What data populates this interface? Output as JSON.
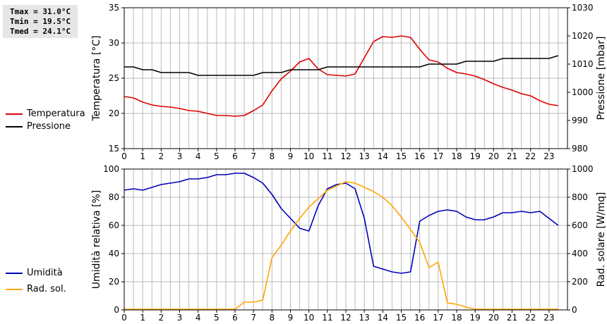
{
  "stats": {
    "tmax": "Tmax = 31.0°C",
    "tmin": "Tmin = 19.5°C",
    "tmed": "Tmed = 24.1°C"
  },
  "legend_top": [
    {
      "label": "Temperatura",
      "color": "#dd0000"
    },
    {
      "label": "Pressione",
      "color": "#000000"
    }
  ],
  "legend_bottom": [
    {
      "label": "Umidità",
      "color": "#0000bb"
    },
    {
      "label": "Rad. sol.",
      "color": "#ffa500"
    }
  ],
  "chart_data": [
    {
      "type": "line",
      "x_ticks": [
        "0",
        "1",
        "2",
        "3",
        "4",
        "5",
        "6",
        "7",
        "8",
        "9",
        "10",
        "11",
        "12",
        "13",
        "14",
        "15",
        "16",
        "17",
        "18",
        "19",
        "20",
        "21",
        "22",
        "23"
      ],
      "xlim": [
        0,
        24
      ],
      "grid": true,
      "y_left": {
        "label": "Temperatura [°C]",
        "lim": [
          15,
          35
        ],
        "ticks": [
          "15",
          "20",
          "25",
          "30",
          "35"
        ]
      },
      "y_right": {
        "label": "Pressione [mbar]",
        "lim": [
          980,
          1030
        ],
        "ticks": [
          "980",
          "990",
          "1000",
          "1010",
          "1020",
          "1030"
        ]
      },
      "series": [
        {
          "name": "Temperatura",
          "axis": "left",
          "color": "#dd0000",
          "x": [
            0,
            0.5,
            1,
            1.5,
            2,
            2.5,
            3,
            3.5,
            4,
            4.5,
            5,
            5.5,
            6,
            6.5,
            7,
            7.5,
            8,
            8.5,
            9,
            9.5,
            10,
            10.5,
            11,
            11.5,
            12,
            12.5,
            13,
            13.5,
            14,
            14.5,
            15,
            15.5,
            16,
            16.5,
            17,
            17.5,
            18,
            18.5,
            19,
            19.5,
            20,
            20.5,
            21,
            21.5,
            22,
            22.5,
            23,
            23.5
          ],
          "y": [
            22.4,
            22.2,
            21.6,
            21.2,
            21.0,
            20.9,
            20.7,
            20.4,
            20.3,
            20.0,
            19.7,
            19.7,
            19.6,
            19.7,
            20.4,
            21.2,
            23.2,
            24.9,
            26.0,
            27.3,
            27.8,
            26.3,
            25.5,
            25.4,
            25.3,
            25.6,
            27.9,
            30.2,
            30.9,
            30.8,
            31.0,
            30.8,
            29.1,
            27.6,
            27.3,
            26.4,
            25.8,
            25.6,
            25.3,
            24.8,
            24.2,
            23.7,
            23.3,
            22.8,
            22.5,
            21.8,
            21.3,
            21.1
          ]
        },
        {
          "name": "Pressione",
          "axis": "right",
          "color": "#000000",
          "x": [
            0,
            0.5,
            1,
            1.5,
            2,
            2.5,
            3,
            3.5,
            4,
            4.5,
            5,
            5.5,
            6,
            6.5,
            7,
            7.5,
            8,
            8.5,
            9,
            9.5,
            10,
            10.5,
            11,
            11.5,
            12,
            12.5,
            13,
            13.5,
            14,
            14.5,
            15,
            15.5,
            16,
            16.5,
            17,
            17.5,
            18,
            18.5,
            19,
            19.5,
            20,
            20.5,
            21,
            21.5,
            22,
            22.5,
            23,
            23.5
          ],
          "y": [
            1009,
            1009,
            1008,
            1008,
            1007,
            1007,
            1007,
            1007,
            1006,
            1006,
            1006,
            1006,
            1006,
            1006,
            1006,
            1007,
            1007,
            1007,
            1008,
            1008,
            1008,
            1008,
            1009,
            1009,
            1009,
            1009,
            1009,
            1009,
            1009,
            1009,
            1009,
            1009,
            1009,
            1010,
            1010,
            1010,
            1010,
            1011,
            1011,
            1011,
            1011,
            1012,
            1012,
            1012,
            1012,
            1012,
            1012,
            1013
          ]
        }
      ]
    },
    {
      "type": "line",
      "x_ticks": [
        "0",
        "1",
        "2",
        "3",
        "4",
        "5",
        "6",
        "7",
        "8",
        "9",
        "10",
        "11",
        "12",
        "13",
        "14",
        "15",
        "16",
        "17",
        "18",
        "19",
        "20",
        "21",
        "22",
        "23"
      ],
      "xlim": [
        0,
        24
      ],
      "grid": true,
      "y_left": {
        "label": "Umidità relativa [%]",
        "lim": [
          0,
          100
        ],
        "ticks": [
          "0",
          "20",
          "40",
          "60",
          "80",
          "100"
        ]
      },
      "y_right": {
        "label": "Rad. solare [W/mq]",
        "lim": [
          0,
          1000
        ],
        "ticks": [
          "0",
          "200",
          "400",
          "600",
          "800",
          "1000"
        ]
      },
      "series": [
        {
          "name": "Umidità",
          "axis": "left",
          "color": "#0000bb",
          "x": [
            0,
            0.5,
            1,
            1.5,
            2,
            2.5,
            3,
            3.5,
            4,
            4.5,
            5,
            5.5,
            6,
            6.5,
            7,
            7.5,
            8,
            8.5,
            9,
            9.5,
            10,
            10.5,
            11,
            11.5,
            12,
            12.5,
            13,
            13.5,
            14,
            14.5,
            15,
            15.5,
            16,
            16.5,
            17,
            17.5,
            18,
            18.5,
            19,
            19.5,
            20,
            20.5,
            21,
            21.5,
            22,
            22.5,
            23,
            23.5
          ],
          "y": [
            85,
            86,
            85,
            87,
            89,
            90,
            91,
            93,
            93,
            94,
            96,
            96,
            97,
            97,
            94,
            90,
            82,
            72,
            65,
            58,
            56,
            74,
            86,
            89,
            90,
            86,
            65,
            31,
            29,
            27,
            26,
            27,
            63,
            67,
            70,
            71,
            70,
            66,
            64,
            64,
            66,
            69,
            69,
            70,
            69,
            70,
            65,
            60
          ]
        },
        {
          "name": "Rad. sol.",
          "axis": "right",
          "color": "#ffa500",
          "x": [
            0,
            0.5,
            1,
            1.5,
            2,
            2.5,
            3,
            3.5,
            4,
            4.5,
            5,
            5.5,
            6,
            6.5,
            7,
            7.5,
            8,
            8.5,
            9,
            9.5,
            10,
            10.5,
            11,
            11.5,
            12,
            12.5,
            13,
            13.5,
            14,
            14.5,
            15,
            15.5,
            16,
            16.5,
            17,
            17.5,
            18,
            18.5,
            19,
            19.5,
            20,
            20.5,
            21,
            21.5,
            22,
            22.5,
            23,
            23.5
          ],
          "y": [
            5,
            5,
            5,
            5,
            5,
            5,
            5,
            5,
            5,
            5,
            5,
            5,
            5,
            55,
            55,
            70,
            370,
            460,
            560,
            650,
            730,
            790,
            850,
            880,
            910,
            900,
            870,
            840,
            800,
            740,
            660,
            570,
            480,
            300,
            340,
            50,
            40,
            20,
            5,
            5,
            5,
            5,
            5,
            5,
            5,
            5,
            5,
            5
          ]
        }
      ]
    }
  ]
}
